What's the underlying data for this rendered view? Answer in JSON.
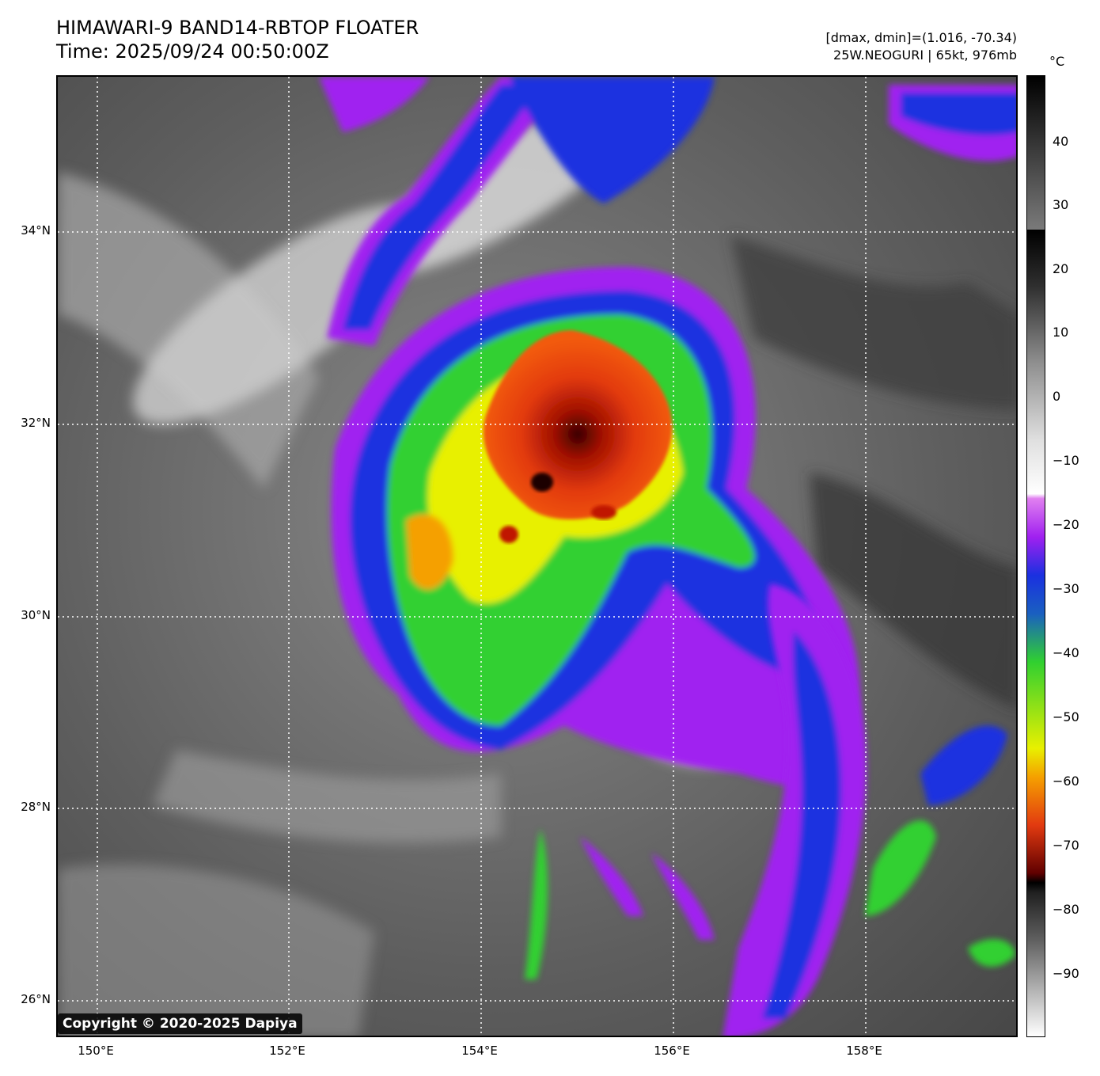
{
  "title": {
    "line1": "HIMAWARI-9 BAND14-RBTOP FLOATER",
    "line2": "Time: 2025/09/24 00:50:00Z"
  },
  "meta": {
    "range": "[dmax, dmin]=(1.016, -70.34)",
    "storm": "25W.NEOGURI | 65kt, 976mb"
  },
  "copyright": "Copyright © 2020-2025 Dapiya",
  "axes": {
    "lat_ticks": [
      "34°N",
      "32°N",
      "30°N",
      "28°N",
      "26°N"
    ],
    "lon_ticks": [
      "150°E",
      "152°E",
      "154°E",
      "156°E",
      "158°E"
    ]
  },
  "colorbar": {
    "unit": "°C",
    "ticks": [
      "40",
      "30",
      "20",
      "10",
      "0",
      "−10",
      "−20",
      "−30",
      "−40",
      "−50",
      "−60",
      "−70",
      "−80",
      "−90"
    ]
  },
  "colors": {
    "cold_core": "#1a0000",
    "red": "#e23a10",
    "orange": "#f5a000",
    "yellow": "#e8f000",
    "green": "#30d030",
    "blue": "#1a30e0",
    "purple": "#a020f0",
    "gridline": "#ffffff"
  }
}
